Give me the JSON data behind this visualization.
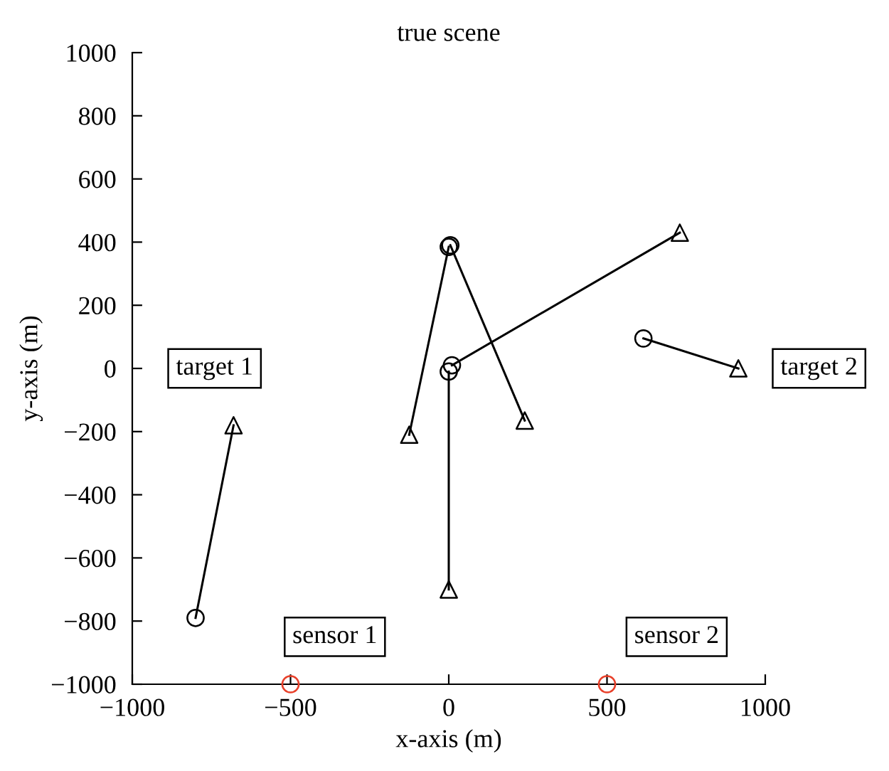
{
  "chart_data": {
    "type": "line",
    "title": "true scene",
    "xlabel": "x-axis (m)",
    "ylabel": "y-axis (m)",
    "xlim": [
      -1000,
      1000
    ],
    "xticks": [
      -1000,
      -500,
      0,
      500,
      1000
    ],
    "ylim": [
      -1000,
      1000
    ],
    "yticks": [
      -1000,
      -800,
      -600,
      -400,
      -200,
      0,
      200,
      400,
      600,
      800,
      1000
    ],
    "grid": false,
    "line_style": "solid",
    "series": [
      {
        "color": "#000000",
        "marker": "none",
        "x": [
          -800,
          -680
        ],
        "values": [
          -790,
          -180
        ]
      },
      {
        "color": "#000000",
        "marker": "none",
        "x": [
          0,
          -125
        ],
        "values": [
          385,
          -210
        ]
      },
      {
        "color": "#000000",
        "marker": "none",
        "x": [
          5,
          240
        ],
        "values": [
          390,
          -165
        ]
      },
      {
        "color": "#000000",
        "marker": "none",
        "x": [
          0,
          0
        ],
        "values": [
          -10,
          -700
        ]
      },
      {
        "color": "#000000",
        "marker": "none",
        "x": [
          10,
          730
        ],
        "values": [
          10,
          430
        ]
      },
      {
        "color": "#000000",
        "marker": "none",
        "x": [
          615,
          915
        ],
        "values": [
          95,
          0
        ]
      },
      {
        "type": "scatter",
        "color": "#000000",
        "marker": "circle",
        "x": [
          -800,
          0,
          5,
          0,
          10,
          615
        ],
        "values": [
          -790,
          385,
          390,
          -10,
          10,
          95
        ]
      },
      {
        "type": "scatter",
        "color": "#000000",
        "marker": "triangle",
        "x": [
          -680,
          -125,
          240,
          0,
          730,
          915
        ],
        "values": [
          -180,
          -210,
          -165,
          -700,
          430,
          0
        ]
      },
      {
        "type": "scatter",
        "color": "#e8402a",
        "marker": "circle",
        "x": [
          -500,
          500
        ],
        "values": [
          -1000,
          -1000
        ]
      }
    ],
    "annotations": [
      "target 1",
      "target 2",
      "sensor 1",
      "sensor 2"
    ]
  }
}
